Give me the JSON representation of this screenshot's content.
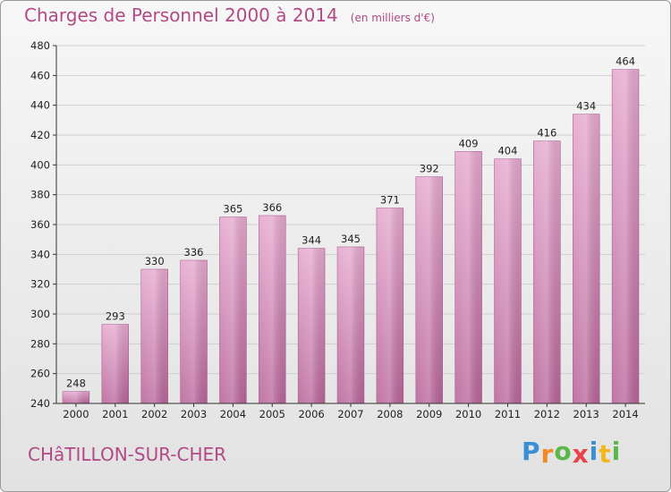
{
  "chart_data": {
    "type": "bar",
    "title": "Charges de Personnel 2000 à 2014",
    "subtitle": "(en milliers d'€)",
    "categories": [
      "2000",
      "2001",
      "2002",
      "2003",
      "2004",
      "2005",
      "2006",
      "2007",
      "2008",
      "2009",
      "2010",
      "2011",
      "2012",
      "2013",
      "2014"
    ],
    "values": [
      248,
      293,
      330,
      336,
      365,
      366,
      344,
      345,
      371,
      392,
      409,
      404,
      416,
      434,
      464
    ],
    "ylim": [
      240,
      480
    ],
    "yticks": [
      240,
      260,
      280,
      300,
      320,
      340,
      360,
      380,
      400,
      420,
      440,
      460,
      480
    ],
    "grid": true,
    "bar_color": "#d88cba",
    "bar_color_top": "#e6a9cf",
    "bar_color_bottom": "#b9669a"
  },
  "footer": {
    "commune": "CHâTILLON-SUR-CHER",
    "logo_letters": [
      {
        "char": "P",
        "color": "#3a8fd4"
      },
      {
        "char": "r",
        "color": "#f08a24"
      },
      {
        "char": "o",
        "color": "#5ab84a"
      },
      {
        "char": "x",
        "color": "#e8434a"
      },
      {
        "char": "i",
        "color": "#3a8fd4"
      },
      {
        "char": "t",
        "color": "#f3b71e"
      },
      {
        "char": "i",
        "color": "#5ab84a"
      }
    ]
  },
  "colors": {
    "title": "#b14a86",
    "grid": "#cfcfcf",
    "axis": "#333333"
  }
}
